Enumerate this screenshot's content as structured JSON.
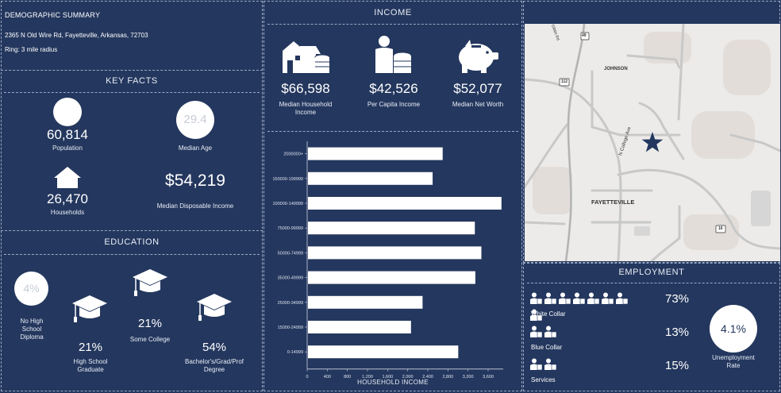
{
  "header": {
    "title": "DEMOGRAPHIC SUMMARY",
    "address": "2365 N Old Wire Rd, Fayetteville, Arkansas, 72703",
    "ring": "Ring: 3 mile radius"
  },
  "key_facts": {
    "title": "KEY FACTS",
    "population": {
      "value": "60,814",
      "label": "Population"
    },
    "median_age": {
      "value": "29.4",
      "label": "Median Age"
    },
    "households": {
      "value": "26,470",
      "label": "Households"
    },
    "disposable_income": {
      "value": "$54,219",
      "label": "Median Disposable Income"
    }
  },
  "education": {
    "title": "EDUCATION",
    "no_hs": {
      "value": "4%",
      "label_lines": [
        "No High",
        "School",
        "Diploma"
      ]
    },
    "hs": {
      "value": "21%",
      "label_lines": [
        "High School",
        "Graduate"
      ]
    },
    "some_college": {
      "value": "21%",
      "label": "Some College"
    },
    "bachelors": {
      "value": "54%",
      "label_lines": [
        "Bachelor's/Grad/Prof",
        "Degree"
      ]
    }
  },
  "income": {
    "title": "INCOME",
    "median_household": {
      "value": "$66,598",
      "label_lines": [
        "Median Household",
        "Income"
      ]
    },
    "per_capita": {
      "value": "$42,526",
      "label": "Per Capita Income"
    },
    "net_worth": {
      "value": "$52,077",
      "label": "Median Net Worth"
    }
  },
  "chart_data": {
    "type": "bar",
    "orientation": "horizontal",
    "categories": [
      "2000000+",
      "150000-199999",
      "100000-149999",
      "75000-99999",
      "50000-74999",
      "35000-49999",
      "25000-34999",
      "15000-24999",
      "0-14999"
    ],
    "values": [
      2680,
      2480,
      3850,
      3320,
      3450,
      3330,
      2280,
      2050,
      2990
    ],
    "xticks": [
      "0",
      "400",
      "800",
      "1,200",
      "1,600",
      "2,000",
      "2,400",
      "2,800",
      "3,200",
      "3,600"
    ],
    "xlim": [
      0,
      3900
    ],
    "xlabel": "HOUSEHOLD INCOME",
    "bar_color": "#ffffff",
    "grid": false
  },
  "map": {
    "labels": {
      "johnson": "JOHNSON",
      "fayetteville": "FAYETTEVILLE",
      "college_ave": "N College Ave",
      "road_top": "Gibbs Rd"
    },
    "shields": {
      "i49": "49",
      "r112": "112",
      "r16": "16"
    }
  },
  "employment": {
    "title": "EMPLOYMENT",
    "white_collar": {
      "value": "73%",
      "label": "White Collar"
    },
    "blue_collar": {
      "value": "13%",
      "label": "Blue Collar"
    },
    "services": {
      "value": "15%",
      "label": "Services"
    },
    "unemployment": {
      "value": "4.1%",
      "label_lines": [
        "Unemployment",
        "Rate"
      ]
    }
  },
  "colors": {
    "background": "#24375e",
    "text": "#ffffff",
    "circle": "#ffffff",
    "map_bg": "#ecebe9",
    "star": "#24375e"
  }
}
